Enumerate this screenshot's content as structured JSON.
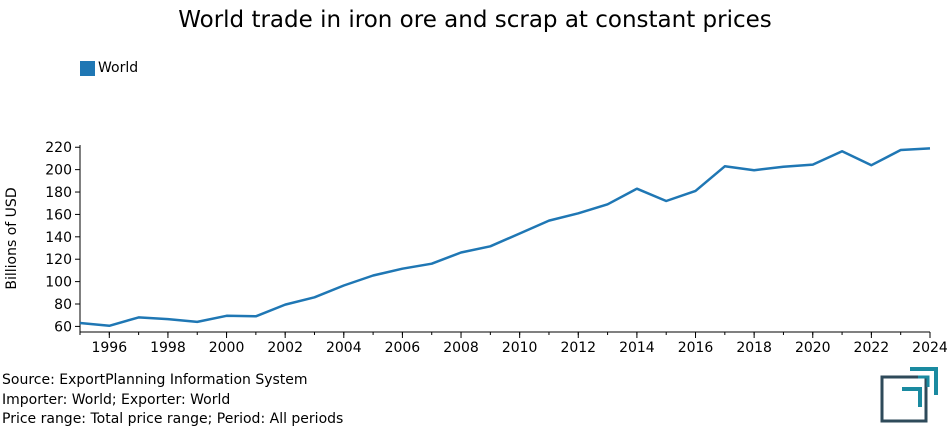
{
  "title": "World trade in iron ore and scrap at constant prices",
  "legend": {
    "label": "World",
    "color": "#1f77b4"
  },
  "footer": {
    "line1": "Source: ExportPlanning Information System",
    "line2": "Importer: World; Exporter: World",
    "line3": "Price range: Total price range; Period: All periods"
  },
  "logo": {
    "icon": "exportplanning-logo-icon",
    "color": "#1a8aa0",
    "dark_color": "#2e4a5a"
  },
  "chart_data": {
    "type": "line",
    "title": "World trade in iron ore and scrap at constant prices",
    "xlabel": "",
    "ylabel": "Billions of USD",
    "xlim": [
      1995,
      2024
    ],
    "ylim": [
      55,
      222
    ],
    "yticks": [
      60,
      80,
      100,
      120,
      140,
      160,
      180,
      200,
      220
    ],
    "xticks": [
      1996,
      1998,
      2000,
      2002,
      2004,
      2006,
      2008,
      2010,
      2012,
      2014,
      2016,
      2018,
      2020,
      2022,
      2024
    ],
    "grid": false,
    "legend_position": "top-left",
    "series": [
      {
        "name": "World",
        "color": "#1f77b4",
        "x": [
          1995,
          1996,
          1997,
          1998,
          1999,
          2000,
          2001,
          2002,
          2003,
          2004,
          2005,
          2006,
          2007,
          2008,
          2009,
          2010,
          2011,
          2012,
          2013,
          2014,
          2015,
          2016,
          2017,
          2018,
          2019,
          2020,
          2021,
          2022,
          2023,
          2024
        ],
        "y": [
          63,
          60.5,
          68,
          66.5,
          64,
          69.5,
          69,
          79.5,
          86,
          96.5,
          105.5,
          111.5,
          116,
          126,
          131.5,
          143,
          154.5,
          161,
          169,
          183,
          172,
          181,
          203,
          199.5,
          202.5,
          204.5,
          216.5,
          204,
          217.5,
          219
        ]
      }
    ]
  }
}
